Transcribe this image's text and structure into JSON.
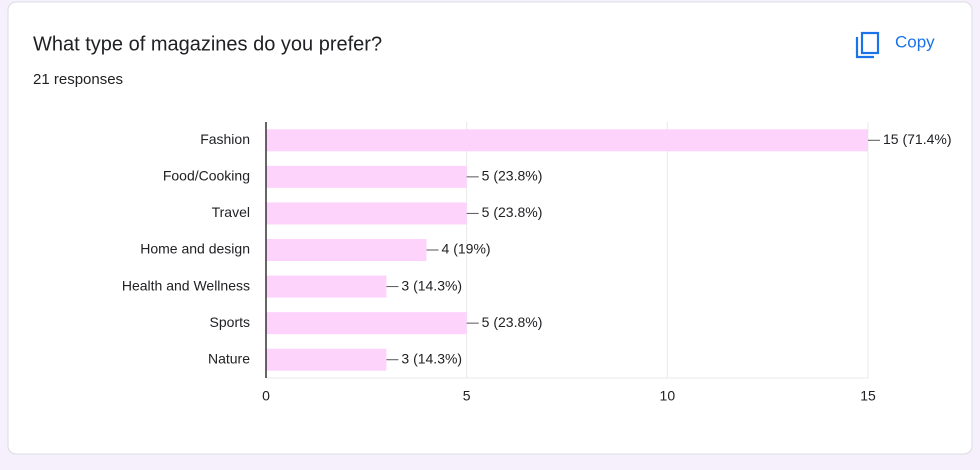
{
  "ui": {
    "copy": "Copy"
  },
  "chart_data": {
    "type": "bar",
    "orientation": "horizontal",
    "title": "What type of magazines do you prefer?",
    "subtitle": "21 responses",
    "categories": [
      "Fashion",
      "Food/Cooking",
      "Travel",
      "Home and design",
      "Health and Wellness",
      "Sports",
      "Nature"
    ],
    "values": [
      15,
      5,
      5,
      4,
      3,
      5,
      3
    ],
    "value_labels": [
      "15 (71.4%)",
      "5 (23.8%)",
      "5 (23.8%)",
      "4 (19%)",
      "3 (14.3%)",
      "5 (23.8%)",
      "3 (14.3%)"
    ],
    "color": "#fdd3fc",
    "xlim": [
      0,
      15
    ],
    "xticks": [
      0,
      5,
      10,
      15
    ],
    "grid": true
  }
}
